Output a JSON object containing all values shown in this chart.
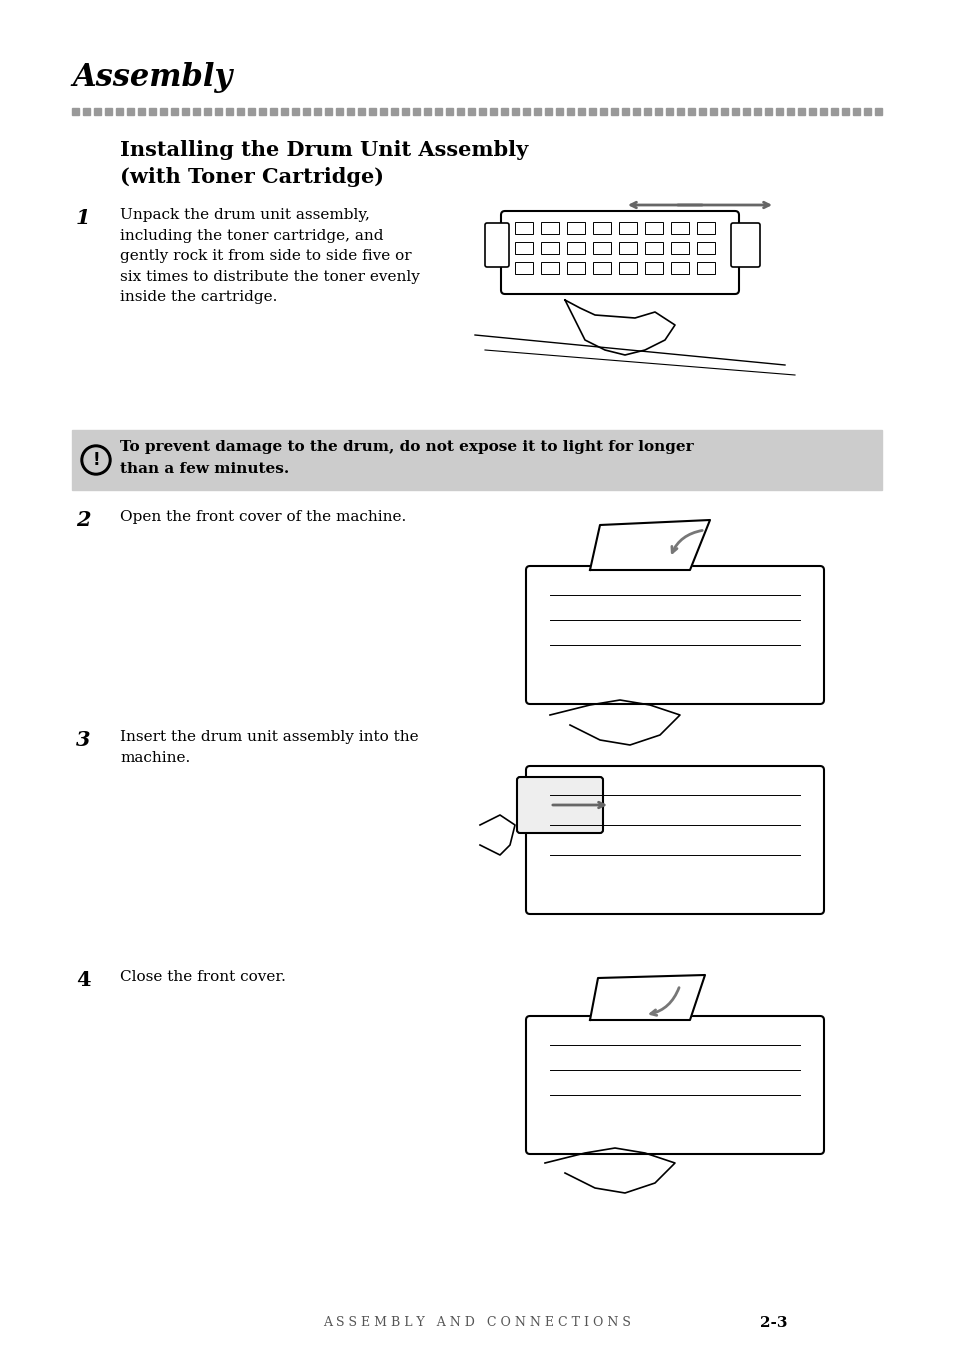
{
  "title": "Assembly",
  "dotted_line_color": "#999999",
  "section_title_line1": "Installing the Drum Unit Assembly",
  "section_title_line2": "(with Toner Cartridge)",
  "step1_num": "1",
  "step1_text": "Unpack the drum unit assembly,\nincluding the toner cartridge, and\ngently rock it from side to side five or\nsix times to distribute the toner evenly\ninside the cartridge.",
  "warning_text_line1": "To prevent damage to the drum, do not expose it to light for longer",
  "warning_text_line2": "than a few minutes.",
  "warning_bg": "#cccccc",
  "step2_num": "2",
  "step2_text": "Open the front cover of the machine.",
  "step3_num": "3",
  "step3_text": "Insert the drum unit assembly into the\nmachine.",
  "step4_num": "4",
  "step4_text": "Close the front cover.",
  "footer_text": "A S S E M B L Y   A N D   C O N N E C T I O N S",
  "footer_page": "2-3",
  "bg_color": "#ffffff",
  "text_color": "#000000",
  "title_fontsize": 22,
  "section_fontsize": 15,
  "body_fontsize": 11,
  "step_num_fontsize": 15,
  "footer_fontsize": 9
}
